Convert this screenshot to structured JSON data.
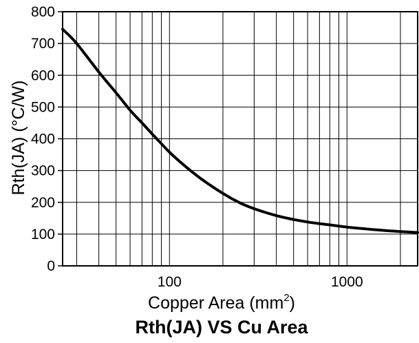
{
  "chart_data": {
    "type": "line",
    "title": "Rth(JA) VS Cu Area",
    "xlabel": "Copper Area (mm",
    "xlabel_superscript": "2",
    "xlabel_suffix": ")",
    "ylabel": "Rth(JA) (°C/W)",
    "x_scale": "log",
    "xlim": [
      25,
      2500
    ],
    "ylim": [
      0,
      800
    ],
    "grid": true,
    "y_ticks": [
      0,
      100,
      200,
      300,
      400,
      500,
      600,
      700,
      800
    ],
    "y_tick_labels": [
      "0",
      "100",
      "200",
      "300",
      "400",
      "500",
      "600",
      "700",
      "800"
    ],
    "x_tick_values": [
      100,
      1000
    ],
    "x_tick_labels": [
      "100",
      "1000"
    ],
    "series": [
      {
        "values_x": [
          25,
          30,
          40,
          50,
          60,
          70,
          80,
          100,
          120,
          150,
          200,
          250,
          300,
          400,
          500,
          600,
          700,
          800,
          1000,
          1500,
          2000,
          2500
        ],
        "values_y": [
          745,
          700,
          610,
          545,
          490,
          450,
          415,
          358,
          318,
          275,
          228,
          198,
          180,
          158,
          146,
          138,
          133,
          129,
          122,
          113,
          108,
          105
        ]
      }
    ]
  }
}
